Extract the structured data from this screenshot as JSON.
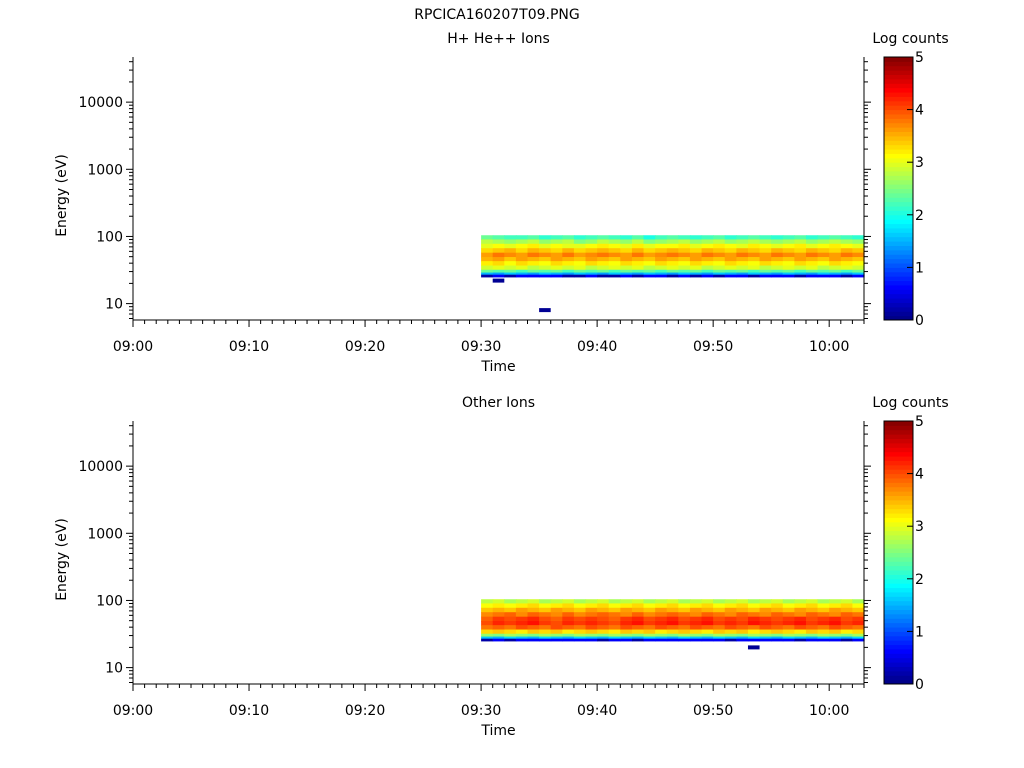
{
  "main_title": "RPCICA160207T09.PNG",
  "colors": {
    "axis": "#000000",
    "background": "#ffffff"
  },
  "chart_data": [
    {
      "type": "heatmap",
      "title": "H+ He++ Ions",
      "xlabel": "Time",
      "ylabel": "Energy (eV)",
      "xlim": [
        "09:00",
        "10:03"
      ],
      "ylim": [
        5.7,
        47000
      ],
      "y_scale": "log",
      "x_ticks": [
        "09:00",
        "09:10",
        "09:20",
        "09:30",
        "09:40",
        "09:50",
        "10:00"
      ],
      "y_ticks": [
        "10",
        "100",
        "1000",
        "10000"
      ],
      "colorbar": {
        "label": "Log counts",
        "min": 0,
        "max": 5,
        "ticks": [
          "0",
          "1",
          "2",
          "3",
          "4",
          "5"
        ],
        "colormap": "jet"
      },
      "time_bins": [
        "09:30",
        "09:31",
        "09:32",
        "09:33",
        "09:34",
        "09:35",
        "09:36",
        "09:37",
        "09:38",
        "09:39",
        "09:40",
        "09:41",
        "09:42",
        "09:43",
        "09:44",
        "09:45",
        "09:46",
        "09:47",
        "09:48",
        "09:49",
        "09:50",
        "09:51",
        "09:52",
        "09:53",
        "09:54",
        "09:55",
        "09:56",
        "09:57",
        "09:58",
        "09:59",
        "10:00",
        "10:01",
        "10:02"
      ],
      "energy_bins": [
        97,
        84,
        72,
        62,
        53,
        46,
        40,
        34,
        30,
        28,
        26
      ],
      "log_counts": [
        [
          2.4,
          2.3,
          2.2,
          2.2,
          2.3,
          2.1,
          2.2,
          2.3,
          2.1,
          2.2,
          2.3,
          2.2,
          2.1,
          2.3,
          2.0,
          2.2,
          2.3,
          2.2,
          2.1,
          2.2,
          2.3,
          2.1,
          2.2,
          2.3,
          2.2,
          2.1,
          2.2,
          2.3,
          2.1,
          2.2,
          2.3,
          2.2,
          2.1
        ],
        [
          2.8,
          2.7,
          2.6,
          2.7,
          2.8,
          2.6,
          2.7,
          2.8,
          2.5,
          2.6,
          2.8,
          2.7,
          2.6,
          2.8,
          2.5,
          2.6,
          2.7,
          2.8,
          2.6,
          2.7,
          2.8,
          2.6,
          2.7,
          2.8,
          2.7,
          2.6,
          2.7,
          2.8,
          2.6,
          2.7,
          2.8,
          2.7,
          2.6
        ],
        [
          3.0,
          3.1,
          3.0,
          3.1,
          3.2,
          3.0,
          3.1,
          3.0,
          3.0,
          3.1,
          3.2,
          3.1,
          3.0,
          3.2,
          3.0,
          3.1,
          3.1,
          3.2,
          3.0,
          3.1,
          3.2,
          3.1,
          3.0,
          3.2,
          3.1,
          3.0,
          3.1,
          3.2,
          3.0,
          3.1,
          3.2,
          3.1,
          3.0
        ],
        [
          3.3,
          3.4,
          3.5,
          3.3,
          3.5,
          3.4,
          3.3,
          3.5,
          3.3,
          3.4,
          3.5,
          3.4,
          3.3,
          3.5,
          3.3,
          3.4,
          3.5,
          3.4,
          3.3,
          3.5,
          3.4,
          3.3,
          3.5,
          3.4,
          3.3,
          3.5,
          3.4,
          3.3,
          3.5,
          3.4,
          3.3,
          3.5,
          3.4
        ],
        [
          3.6,
          3.8,
          3.7,
          3.6,
          3.8,
          3.7,
          3.6,
          3.8,
          3.6,
          3.7,
          3.8,
          3.7,
          3.6,
          3.8,
          3.6,
          3.7,
          3.8,
          3.7,
          3.6,
          3.8,
          3.7,
          3.6,
          3.8,
          3.7,
          3.6,
          3.8,
          3.7,
          3.6,
          3.8,
          3.7,
          3.6,
          3.8,
          3.7
        ],
        [
          3.5,
          3.6,
          3.4,
          3.6,
          3.5,
          3.4,
          3.6,
          3.5,
          3.4,
          3.6,
          3.5,
          3.4,
          3.6,
          3.5,
          3.4,
          3.6,
          3.5,
          3.4,
          3.6,
          3.5,
          3.4,
          3.6,
          3.5,
          3.4,
          3.6,
          3.5,
          3.4,
          3.6,
          3.5,
          3.4,
          3.6,
          3.5,
          3.4
        ],
        [
          3.2,
          3.3,
          3.1,
          3.3,
          3.2,
          3.1,
          3.3,
          3.2,
          3.1,
          3.3,
          3.2,
          3.1,
          3.3,
          3.2,
          3.1,
          3.3,
          3.2,
          3.1,
          3.3,
          3.2,
          3.1,
          3.3,
          3.2,
          3.1,
          3.3,
          3.2,
          3.1,
          3.3,
          3.2,
          3.1,
          3.3,
          3.2,
          3.1
        ],
        [
          2.9,
          3.0,
          2.9,
          3.0,
          2.8,
          2.9,
          3.0,
          2.9,
          3.0,
          2.8,
          2.9,
          3.0,
          2.9,
          3.0,
          2.8,
          2.9,
          3.0,
          2.9,
          3.0,
          2.8,
          2.9,
          3.0,
          2.9,
          3.0,
          2.8,
          2.9,
          3.0,
          2.9,
          3.0,
          2.8,
          2.9,
          3.0,
          2.9
        ],
        [
          2.4,
          2.3,
          2.4,
          2.2,
          2.4,
          2.3,
          2.4,
          2.2,
          2.4,
          2.3,
          2.4,
          2.2,
          2.4,
          2.3,
          2.4,
          2.2,
          2.4,
          2.3,
          2.4,
          2.2,
          2.4,
          2.3,
          2.4,
          2.2,
          2.4,
          2.3,
          2.4,
          2.2,
          2.4,
          2.3,
          2.4,
          2.2,
          2.4
        ],
        [
          1.5,
          1.4,
          1.6,
          1.5,
          1.4,
          1.6,
          1.5,
          1.4,
          1.6,
          1.5,
          1.4,
          1.6,
          1.5,
          1.4,
          1.6,
          1.5,
          1.4,
          1.6,
          1.5,
          1.4,
          1.6,
          1.5,
          1.4,
          1.6,
          1.5,
          1.4,
          1.6,
          1.5,
          1.4,
          1.6,
          1.5,
          1.4,
          1.6
        ],
        [
          0.2,
          0.6,
          0.2,
          0.6,
          0.6,
          0.6,
          0.6,
          0.2,
          0.2,
          0.6,
          0.2,
          0.2,
          0.6,
          0.2,
          0.6,
          0.6,
          0.2,
          0.6,
          0.2,
          0.6,
          0.2,
          0.6,
          0.6,
          0.2,
          0.6,
          0.6,
          0.6,
          0.2,
          0.6,
          0.6,
          0.6,
          0.2,
          0.6
        ]
      ],
      "sparse_points": [
        {
          "time": "09:31",
          "energy": 22,
          "log_count": 0.1
        },
        {
          "time": "09:35",
          "energy": 8,
          "log_count": 0.1
        }
      ]
    },
    {
      "type": "heatmap",
      "title": "Other Ions",
      "xlabel": "Time",
      "ylabel": "Energy (eV)",
      "xlim": [
        "09:00",
        "10:03"
      ],
      "ylim": [
        5.7,
        47000
      ],
      "y_scale": "log",
      "x_ticks": [
        "09:00",
        "09:10",
        "09:20",
        "09:30",
        "09:40",
        "09:50",
        "10:00"
      ],
      "y_ticks": [
        "10",
        "100",
        "1000",
        "10000"
      ],
      "colorbar": {
        "label": "Log counts",
        "min": 0,
        "max": 5,
        "ticks": [
          "0",
          "1",
          "2",
          "3",
          "4",
          "5"
        ],
        "colormap": "jet"
      },
      "time_bins": [
        "09:30",
        "09:31",
        "09:32",
        "09:33",
        "09:34",
        "09:35",
        "09:36",
        "09:37",
        "09:38",
        "09:39",
        "09:40",
        "09:41",
        "09:42",
        "09:43",
        "09:44",
        "09:45",
        "09:46",
        "09:47",
        "09:48",
        "09:49",
        "09:50",
        "09:51",
        "09:52",
        "09:53",
        "09:54",
        "09:55",
        "09:56",
        "09:57",
        "09:58",
        "09:59",
        "10:00",
        "10:01",
        "10:02"
      ],
      "energy_bins": [
        97,
        84,
        72,
        62,
        53,
        46,
        40,
        34,
        30,
        28,
        26
      ],
      "log_counts": [
        [
          2.8,
          2.9,
          2.7,
          2.8,
          2.9,
          2.7,
          2.8,
          2.9,
          2.7,
          2.8,
          2.9,
          2.7,
          2.8,
          2.9,
          2.7,
          2.8,
          2.9,
          2.7,
          2.8,
          2.9,
          2.7,
          2.8,
          2.9,
          2.7,
          2.8,
          2.9,
          2.7,
          2.8,
          2.9,
          2.7,
          2.8,
          2.9,
          2.7
        ],
        [
          3.1,
          3.2,
          3.1,
          3.2,
          3.3,
          3.1,
          3.2,
          3.3,
          3.1,
          3.2,
          3.3,
          3.1,
          3.2,
          3.3,
          3.1,
          3.2,
          3.3,
          3.1,
          3.2,
          3.3,
          3.1,
          3.2,
          3.3,
          3.1,
          3.2,
          3.3,
          3.1,
          3.2,
          3.3,
          3.1,
          3.2,
          3.3,
          3.1
        ],
        [
          3.4,
          3.5,
          3.4,
          3.6,
          3.5,
          3.4,
          3.6,
          3.5,
          3.4,
          3.6,
          3.5,
          3.4,
          3.6,
          3.5,
          3.4,
          3.6,
          3.5,
          3.4,
          3.6,
          3.5,
          3.4,
          3.6,
          3.5,
          3.4,
          3.6,
          3.5,
          3.4,
          3.6,
          3.5,
          3.4,
          3.6,
          3.5,
          3.4
        ],
        [
          3.7,
          3.8,
          3.9,
          3.7,
          3.9,
          3.8,
          3.7,
          3.9,
          3.7,
          3.8,
          3.9,
          3.8,
          3.7,
          3.9,
          3.7,
          3.8,
          3.9,
          3.8,
          3.7,
          3.9,
          3.8,
          3.7,
          3.9,
          3.8,
          3.7,
          3.9,
          3.8,
          3.7,
          3.9,
          3.8,
          3.7,
          3.9,
          3.8
        ],
        [
          3.9,
          4.1,
          4.0,
          4.1,
          4.2,
          4.0,
          3.9,
          4.1,
          4.0,
          4.1,
          4.0,
          3.9,
          4.1,
          4.2,
          4.0,
          4.1,
          4.2,
          4.0,
          4.1,
          4.2,
          4.0,
          4.1,
          4.0,
          4.2,
          4.1,
          4.0,
          4.1,
          4.2,
          4.0,
          4.1,
          4.2,
          4.0,
          4.1
        ],
        [
          4.0,
          4.2,
          4.1,
          4.2,
          4.3,
          4.1,
          4.0,
          4.2,
          4.1,
          4.2,
          4.1,
          4.0,
          4.2,
          4.3,
          4.1,
          4.2,
          4.3,
          4.1,
          4.2,
          4.3,
          4.1,
          4.2,
          4.1,
          4.3,
          4.2,
          4.1,
          4.2,
          4.3,
          4.1,
          4.2,
          4.3,
          4.1,
          4.2
        ],
        [
          3.8,
          3.9,
          3.8,
          4.0,
          3.9,
          3.8,
          4.0,
          3.9,
          3.8,
          4.0,
          3.9,
          3.8,
          4.0,
          3.9,
          3.8,
          4.0,
          3.9,
          3.8,
          4.0,
          3.9,
          3.8,
          4.0,
          3.9,
          3.8,
          4.0,
          3.9,
          3.8,
          4.0,
          3.9,
          3.8,
          4.0,
          3.9,
          3.8
        ],
        [
          3.3,
          3.4,
          3.3,
          3.2,
          3.4,
          3.3,
          3.4,
          3.2,
          3.3,
          3.4,
          3.3,
          3.2,
          3.4,
          3.3,
          3.4,
          3.2,
          3.3,
          3.4,
          3.3,
          3.2,
          3.4,
          3.3,
          3.4,
          3.2,
          3.3,
          3.4,
          3.3,
          3.2,
          3.4,
          3.3,
          3.4,
          3.2,
          3.3
        ],
        [
          2.6,
          2.5,
          2.7,
          2.6,
          2.5,
          2.7,
          2.6,
          2.5,
          2.7,
          2.6,
          2.5,
          2.7,
          2.6,
          2.5,
          2.7,
          2.6,
          2.5,
          2.7,
          2.6,
          2.5,
          2.7,
          2.6,
          2.5,
          2.7,
          2.6,
          2.5,
          2.7,
          2.6,
          2.5,
          2.7,
          2.6,
          2.5,
          2.7
        ],
        [
          1.6,
          1.5,
          1.7,
          1.6,
          1.5,
          1.7,
          1.6,
          1.5,
          1.7,
          1.6,
          1.5,
          1.7,
          1.6,
          1.5,
          1.7,
          1.6,
          1.5,
          1.7,
          1.6,
          1.5,
          1.7,
          1.6,
          1.5,
          1.7,
          1.6,
          1.5,
          1.7,
          1.6,
          1.5,
          1.7,
          1.6,
          1.5,
          1.7
        ],
        [
          0.2,
          0.6,
          0.2,
          0.6,
          0.6,
          0.6,
          0.6,
          0.6,
          0.6,
          0.6,
          0.2,
          0.6,
          0.6,
          0.2,
          0.6,
          0.6,
          0.6,
          0.6,
          0.6,
          0.6,
          0.6,
          0.2,
          0.6,
          0.6,
          0.6,
          0.6,
          0.6,
          0.2,
          0.6,
          0.6,
          0.6,
          0.2,
          0.6
        ]
      ],
      "sparse_points": [
        {
          "time": "09:53",
          "energy": 20,
          "log_count": 0.1
        }
      ]
    }
  ]
}
